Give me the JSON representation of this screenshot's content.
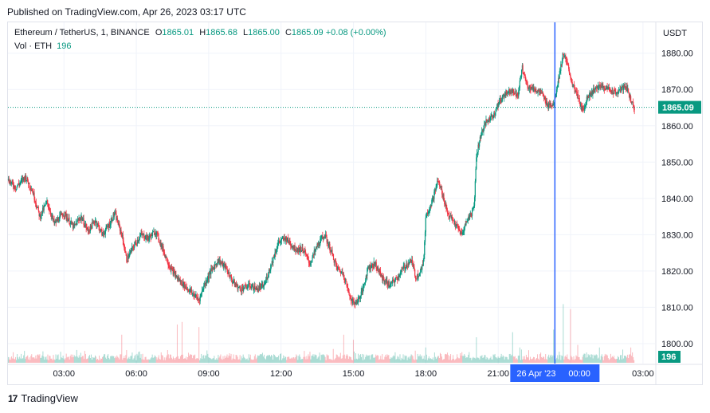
{
  "published": "Published on TradingView.com, Apr 26, 2023 03:17 UTC",
  "legend": {
    "symbol": "Ethereum / TetherUS, 1, BINANCE",
    "open_label": "O",
    "open": "1865.01",
    "high_label": "H",
    "high": "1865.68",
    "low_label": "L",
    "low": "1865.00",
    "close_label": "C",
    "close": "1865.09",
    "change": "+0.08 (+0.00%)",
    "volume_label": "Vol · ETH",
    "volume_value": "196"
  },
  "currency": "USDT",
  "footer": {
    "logo": "17",
    "brand": "TradingView"
  },
  "colors": {
    "up": "#089981",
    "down": "#f23645",
    "crosshair": "#2962ff",
    "grid": "#f0f3fa"
  },
  "chart_data": {
    "type": "candlestick",
    "y_ticks": [
      "1880.00",
      "1870.00",
      "1860.00",
      "1850.00",
      "1840.00",
      "1830.00",
      "1820.00",
      "1810.00",
      "1800.00"
    ],
    "y_tick_values": [
      1880,
      1870,
      1860,
      1850,
      1840,
      1830,
      1820,
      1810,
      1800
    ],
    "ylim": [
      1794.5,
      1888.5
    ],
    "x_ticks": [
      "03:00",
      "06:00",
      "09:00",
      "12:00",
      "15:00",
      "18:00",
      "21:00",
      "00:00",
      "03:00"
    ],
    "x_tick_hours": [
      3,
      6,
      9,
      12,
      15,
      18,
      21,
      24,
      27
    ],
    "xlim_hours": [
      0.68,
      27.5
    ],
    "current_price": 1865.09,
    "current_price_label": "1865.09",
    "current_volume_label": "196",
    "crosshair": {
      "hour": 23.35,
      "date_label": "26 Apr '23",
      "time_label": "00:00"
    },
    "price_path": [
      [
        0.7,
        1845
      ],
      [
        1.0,
        1843
      ],
      [
        1.4,
        1846
      ],
      [
        1.7,
        1842
      ],
      [
        2.0,
        1835
      ],
      [
        2.3,
        1839
      ],
      [
        2.6,
        1833
      ],
      [
        3.0,
        1836
      ],
      [
        3.4,
        1832
      ],
      [
        3.7,
        1835
      ],
      [
        4.0,
        1831
      ],
      [
        4.3,
        1834
      ],
      [
        4.6,
        1830
      ],
      [
        4.9,
        1833
      ],
      [
        5.1,
        1836
      ],
      [
        5.4,
        1830
      ],
      [
        5.6,
        1823
      ],
      [
        5.9,
        1827
      ],
      [
        6.2,
        1830
      ],
      [
        6.5,
        1829
      ],
      [
        6.8,
        1831
      ],
      [
        7.1,
        1826
      ],
      [
        7.4,
        1821
      ],
      [
        7.7,
        1818
      ],
      [
        8.0,
        1816
      ],
      [
        8.3,
        1814
      ],
      [
        8.6,
        1812
      ],
      [
        8.8,
        1816
      ],
      [
        9.1,
        1820
      ],
      [
        9.4,
        1823
      ],
      [
        9.7,
        1821
      ],
      [
        10.0,
        1817
      ],
      [
        10.3,
        1815
      ],
      [
        10.7,
        1816
      ],
      [
        11.0,
        1815
      ],
      [
        11.3,
        1816
      ],
      [
        11.6,
        1822
      ],
      [
        11.9,
        1828
      ],
      [
        12.2,
        1829
      ],
      [
        12.6,
        1826
      ],
      [
        12.9,
        1826
      ],
      [
        13.2,
        1822
      ],
      [
        13.5,
        1827
      ],
      [
        13.8,
        1830
      ],
      [
        14.1,
        1825
      ],
      [
        14.3,
        1821
      ],
      [
        14.6,
        1819
      ],
      [
        14.8,
        1814
      ],
      [
        15.0,
        1811
      ],
      [
        15.2,
        1812
      ],
      [
        15.4,
        1815
      ],
      [
        15.6,
        1821
      ],
      [
        15.9,
        1822
      ],
      [
        16.2,
        1818
      ],
      [
        16.5,
        1816
      ],
      [
        16.8,
        1818
      ],
      [
        17.1,
        1821
      ],
      [
        17.4,
        1823
      ],
      [
        17.6,
        1818
      ],
      [
        17.9,
        1822
      ],
      [
        18.0,
        1835
      ],
      [
        18.3,
        1840
      ],
      [
        18.5,
        1845
      ],
      [
        18.7,
        1841
      ],
      [
        18.9,
        1836
      ],
      [
        19.1,
        1834
      ],
      [
        19.3,
        1832
      ],
      [
        19.5,
        1830
      ],
      [
        19.7,
        1834
      ],
      [
        19.9,
        1836
      ],
      [
        20.0,
        1838
      ],
      [
        20.1,
        1852
      ],
      [
        20.3,
        1858
      ],
      [
        20.5,
        1861
      ],
      [
        20.8,
        1863
      ],
      [
        21.0,
        1866
      ],
      [
        21.3,
        1869
      ],
      [
        21.6,
        1870
      ],
      [
        21.8,
        1868
      ],
      [
        22.0,
        1876
      ],
      [
        22.2,
        1871
      ],
      [
        22.5,
        1870
      ],
      [
        22.8,
        1869
      ],
      [
        23.0,
        1866
      ],
      [
        23.3,
        1866
      ],
      [
        23.5,
        1873
      ],
      [
        23.7,
        1880
      ],
      [
        23.9,
        1876
      ],
      [
        24.1,
        1871
      ],
      [
        24.3,
        1868
      ],
      [
        24.5,
        1864
      ],
      [
        24.7,
        1868
      ],
      [
        25.0,
        1870
      ],
      [
        25.3,
        1871
      ],
      [
        25.6,
        1870
      ],
      [
        25.9,
        1869
      ],
      [
        26.1,
        1870
      ],
      [
        26.3,
        1871
      ],
      [
        26.5,
        1867
      ],
      [
        26.65,
        1865.09
      ]
    ],
    "volume_spikes": [
      [
        5.4,
        0.22
      ],
      [
        5.6,
        0.1
      ],
      [
        7.3,
        0.1
      ],
      [
        7.7,
        0.3
      ],
      [
        7.9,
        0.32
      ],
      [
        8.6,
        0.28
      ],
      [
        13.6,
        0.08
      ],
      [
        14.6,
        0.22
      ],
      [
        15.0,
        0.18
      ],
      [
        18.0,
        0.12
      ],
      [
        18.9,
        0.08
      ],
      [
        20.1,
        0.2
      ],
      [
        21.6,
        0.24
      ],
      [
        21.9,
        0.12
      ],
      [
        23.3,
        0.26
      ],
      [
        23.7,
        0.46
      ],
      [
        24.0,
        0.42
      ],
      [
        24.3,
        0.14
      ],
      [
        25.2,
        0.12
      ],
      [
        26.5,
        0.12
      ]
    ]
  }
}
